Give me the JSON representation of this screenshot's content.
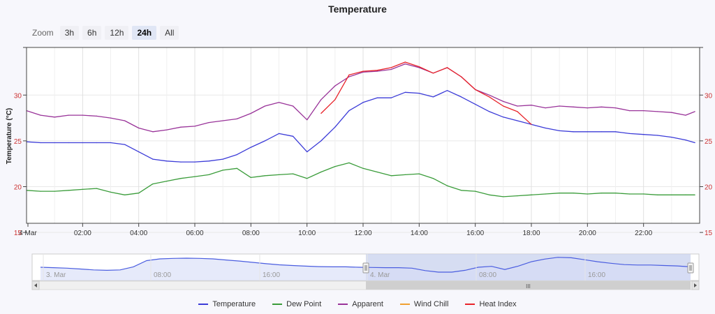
{
  "chart_data": {
    "type": "line",
    "title": "Temperature",
    "ylabel": "Temperature (°C)",
    "ylim": [
      15,
      35
    ],
    "xlim": [
      "4 Mar 00:00",
      "4 Mar 23:50"
    ],
    "yticks": [
      "15",
      "20",
      "25",
      "30"
    ],
    "xticks": [
      "4 Mar",
      "02:00",
      "04:00",
      "06:00",
      "08:00",
      "10:00",
      "12:00",
      "14:00",
      "16:00",
      "18:00",
      "20:00",
      "22:00"
    ],
    "x_hours": [
      0,
      0.5,
      1,
      1.5,
      2,
      2.5,
      3,
      3.5,
      4,
      4.5,
      5,
      5.5,
      6,
      6.5,
      7,
      7.5,
      8,
      8.5,
      9,
      9.5,
      10,
      10.5,
      11,
      11.5,
      12,
      12.5,
      13,
      13.5,
      14,
      14.5,
      15,
      15.5,
      16,
      16.5,
      17,
      17.5,
      18,
      18.5,
      19,
      19.5,
      20,
      20.5,
      21,
      21.5,
      22,
      22.5,
      23,
      23.5,
      23.83
    ],
    "series": [
      {
        "name": "Temperature",
        "color": "#3b3bd8",
        "values": [
          24.9,
          24.8,
          24.8,
          24.8,
          24.8,
          24.8,
          24.8,
          24.6,
          23.8,
          23.0,
          22.8,
          22.7,
          22.7,
          22.8,
          23.0,
          23.5,
          24.3,
          25.0,
          25.8,
          25.5,
          23.8,
          25.0,
          26.5,
          28.3,
          29.2,
          29.7,
          29.7,
          30.3,
          30.2,
          29.8,
          30.5,
          29.8,
          29.0,
          28.2,
          27.6,
          27.2,
          26.8,
          26.4,
          26.1,
          26.0,
          26.0,
          26.0,
          26.0,
          25.8,
          25.7,
          25.6,
          25.4,
          25.1,
          24.8
        ]
      },
      {
        "name": "Dew Point",
        "color": "#3a9c3a",
        "values": [
          19.6,
          19.5,
          19.5,
          19.6,
          19.7,
          19.8,
          19.4,
          19.1,
          19.3,
          20.3,
          20.6,
          20.9,
          21.1,
          21.3,
          21.8,
          22.0,
          21.0,
          21.2,
          21.3,
          21.4,
          20.9,
          21.6,
          22.2,
          22.6,
          22.0,
          21.6,
          21.2,
          21.3,
          21.4,
          20.9,
          20.1,
          19.6,
          19.5,
          19.1,
          18.9,
          19.0,
          19.1,
          19.2,
          19.3,
          19.3,
          19.2,
          19.3,
          19.3,
          19.2,
          19.2,
          19.1,
          19.1,
          19.1,
          19.1
        ]
      },
      {
        "name": "Apparent",
        "color": "#993399",
        "values": [
          28.3,
          27.8,
          27.6,
          27.8,
          27.8,
          27.7,
          27.5,
          27.2,
          26.4,
          26.0,
          26.2,
          26.5,
          26.6,
          27.0,
          27.2,
          27.4,
          28.0,
          28.8,
          29.2,
          28.8,
          27.3,
          29.5,
          31.0,
          32.0,
          32.5,
          32.6,
          32.8,
          33.4,
          33.0,
          32.4,
          33.0,
          32.0,
          30.6,
          30.0,
          29.3,
          28.8,
          28.9,
          28.6,
          28.8,
          28.7,
          28.6,
          28.7,
          28.6,
          28.3,
          28.3,
          28.2,
          28.1,
          27.8,
          28.2
        ]
      },
      {
        "name": "Wind Chill",
        "color": "#f0a030",
        "values": [
          null,
          null,
          null,
          null,
          null,
          null,
          null,
          null,
          null,
          null,
          null,
          null,
          null,
          null,
          null,
          null,
          null,
          null,
          null,
          null,
          null,
          null,
          null,
          null,
          null,
          null,
          null,
          null,
          null,
          null,
          null,
          null,
          null,
          null,
          null,
          null,
          null,
          null,
          null,
          null,
          null,
          null,
          null,
          null,
          null,
          null,
          null,
          null,
          null
        ]
      },
      {
        "name": "Heat Index",
        "color": "#e8232a",
        "values": [
          null,
          null,
          null,
          null,
          null,
          null,
          null,
          null,
          null,
          null,
          null,
          null,
          null,
          null,
          null,
          null,
          null,
          null,
          null,
          null,
          null,
          28.0,
          29.5,
          32.2,
          32.6,
          32.7,
          33.0,
          33.6,
          33.1,
          32.4,
          33.0,
          32.0,
          30.6,
          29.8,
          28.8,
          28.2,
          26.8,
          null,
          null,
          null,
          null,
          null,
          null,
          null,
          null,
          null,
          null,
          null,
          null
        ]
      }
    ],
    "grid": true,
    "legend_position": "bottom-center"
  },
  "zoom": {
    "label": "Zoom",
    "buttons": [
      "3h",
      "6h",
      "12h",
      "24h",
      "All"
    ],
    "selected": "24h"
  },
  "navigator": {
    "labels": [
      "3. Mar",
      "08:00",
      "16:00",
      "4. Mar",
      "08:00",
      "16:00"
    ],
    "series_values": [
      25.0,
      24.8,
      24.6,
      24.2,
      23.8,
      23.6,
      23.8,
      25.2,
      28.0,
      28.8,
      29.0,
      29.1,
      29.0,
      28.8,
      28.3,
      27.8,
      27.2,
      26.6,
      26.1,
      25.8,
      25.5,
      25.3,
      25.2,
      25.2,
      25.0,
      24.9,
      24.8,
      24.8,
      24.6,
      23.5,
      22.8,
      22.8,
      23.6,
      25.0,
      25.4,
      24.0,
      25.5,
      27.5,
      28.7,
      29.5,
      29.3,
      28.4,
      27.5,
      26.8,
      26.2,
      26.0,
      26.0,
      25.8,
      25.6,
      25.2
    ],
    "scrollbar_grip": "III"
  }
}
